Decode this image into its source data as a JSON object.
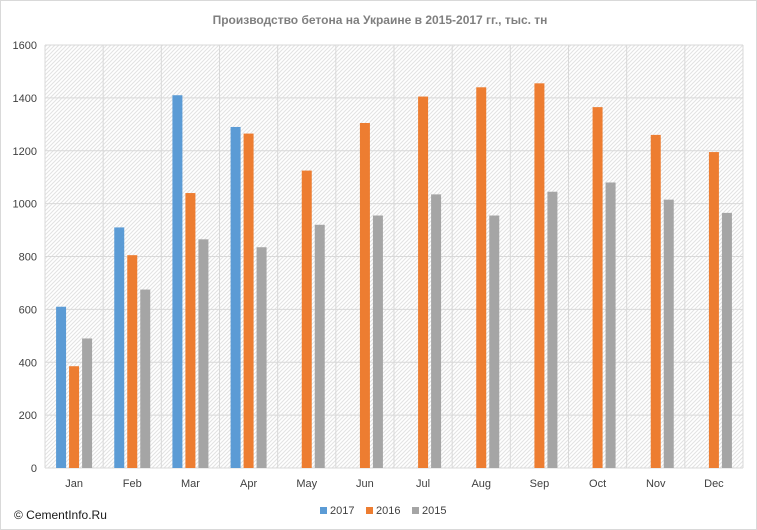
{
  "watermark": "© CementInfo.Ru",
  "chart_data": {
    "type": "bar",
    "title": "Производство бетона на Украине в 2015-2017  гг., тыс. тн",
    "xlabel": "",
    "ylabel": "",
    "categories": [
      "Jan",
      "Feb",
      "Mar",
      "Apr",
      "May",
      "Jun",
      "Jul",
      "Aug",
      "Sep",
      "Oct",
      "Nov",
      "Dec"
    ],
    "series": [
      {
        "name": "2017",
        "color": "#5b9bd5",
        "values": [
          610,
          910,
          1410,
          1290,
          null,
          null,
          null,
          null,
          null,
          null,
          null,
          null
        ]
      },
      {
        "name": "2016",
        "color": "#ed7d31",
        "values": [
          385,
          805,
          1040,
          1265,
          1125,
          1305,
          1405,
          1440,
          1455,
          1365,
          1260,
          1195
        ]
      },
      {
        "name": "2015",
        "color": "#a5a5a5",
        "values": [
          490,
          675,
          865,
          835,
          920,
          955,
          1035,
          955,
          1045,
          1080,
          1015,
          965
        ]
      }
    ],
    "ylim": [
      0,
      1600
    ],
    "yticks": [
      0,
      200,
      400,
      600,
      800,
      1000,
      1200,
      1400,
      1600
    ],
    "grid": true,
    "legend_position": "bottom"
  }
}
